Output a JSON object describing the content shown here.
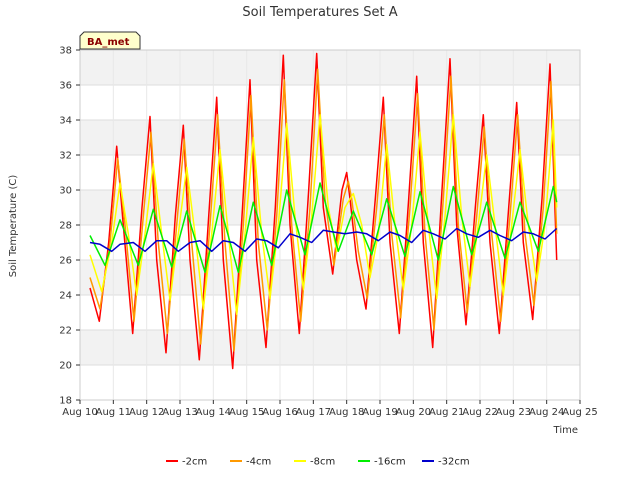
{
  "chart_data": {
    "type": "line",
    "title": "Soil Temperatures Set A",
    "xlabel": "Time",
    "ylabel": "Soil Temperature (C)",
    "badge": "BA_met",
    "xlim": [
      10,
      25
    ],
    "ylim": [
      18,
      38
    ],
    "x_ticks": [
      10,
      11,
      12,
      13,
      14,
      15,
      16,
      17,
      18,
      19,
      20,
      21,
      22,
      23,
      24,
      25
    ],
    "x_tick_labels": [
      "Aug 10",
      "Aug 11",
      "Aug 12",
      "Aug 13",
      "Aug 14",
      "Aug 15",
      "Aug 16",
      "Aug 17",
      "Aug 18",
      "Aug 19",
      "Aug 20",
      "Aug 21",
      "Aug 22",
      "Aug 23",
      "Aug 24",
      "Aug 25"
    ],
    "y_ticks": [
      18,
      20,
      22,
      24,
      26,
      28,
      30,
      32,
      34,
      36,
      38
    ],
    "grid": true,
    "legend_position": "bottom",
    "series": [
      {
        "name": "-2cm",
        "color": "#ff0000",
        "x": [
          10.3,
          10.58,
          10.86,
          11.1,
          11.3,
          11.58,
          11.86,
          12.1,
          12.3,
          12.58,
          12.86,
          13.1,
          13.3,
          13.58,
          13.86,
          14.1,
          14.3,
          14.58,
          14.86,
          15.1,
          15.3,
          15.58,
          15.86,
          16.1,
          16.3,
          16.58,
          16.86,
          17.1,
          17.3,
          17.58,
          17.86,
          18.0,
          18.1,
          18.3,
          18.58,
          18.86,
          19.1,
          19.3,
          19.58,
          19.86,
          20.1,
          20.3,
          20.58,
          20.86,
          21.1,
          21.3,
          21.58,
          21.86,
          22.1,
          22.3,
          22.58,
          22.86,
          23.1,
          23.3,
          23.58,
          23.86,
          24.1,
          24.3
        ],
        "y": [
          24.4,
          22.5,
          27.0,
          32.5,
          28.0,
          21.8,
          29.0,
          34.2,
          26.0,
          20.7,
          28.5,
          33.7,
          26.0,
          20.3,
          28.5,
          35.3,
          26.0,
          19.8,
          28.5,
          36.3,
          26.0,
          21.0,
          29.0,
          37.7,
          28.0,
          21.8,
          30.0,
          37.8,
          29.0,
          25.2,
          30.0,
          31.0,
          29.5,
          26.0,
          23.2,
          29.5,
          35.3,
          27.0,
          21.8,
          29.5,
          36.5,
          27.0,
          21.0,
          30.0,
          37.5,
          28.0,
          22.3,
          29.0,
          34.3,
          27.0,
          21.8,
          29.0,
          35.0,
          27.0,
          22.6,
          29.5,
          37.2,
          26.0
        ]
      },
      {
        "name": "-4cm",
        "color": "#ff9900",
        "x": [
          10.3,
          10.6,
          10.9,
          11.13,
          11.35,
          11.62,
          11.9,
          12.13,
          12.35,
          12.62,
          12.9,
          13.13,
          13.35,
          13.62,
          13.9,
          14.13,
          14.35,
          14.62,
          14.9,
          15.13,
          15.35,
          15.62,
          15.9,
          16.13,
          16.35,
          16.62,
          16.9,
          17.13,
          17.35,
          17.62,
          17.9,
          18.05,
          18.15,
          18.35,
          18.62,
          18.9,
          19.13,
          19.35,
          19.62,
          19.9,
          20.13,
          20.35,
          20.62,
          20.9,
          21.13,
          21.35,
          21.62,
          21.9,
          22.13,
          22.35,
          22.62,
          22.9,
          23.13,
          23.35,
          23.62,
          23.9,
          24.13,
          24.3
        ],
        "y": [
          25.0,
          23.2,
          27.0,
          31.8,
          28.0,
          22.5,
          28.5,
          33.3,
          27.0,
          21.8,
          28.0,
          32.9,
          27.0,
          21.2,
          28.0,
          34.3,
          27.0,
          20.8,
          28.0,
          35.4,
          27.0,
          22.0,
          28.5,
          36.3,
          28.0,
          22.5,
          29.0,
          36.9,
          29.5,
          25.7,
          29.5,
          30.5,
          29.5,
          26.5,
          23.8,
          29.0,
          34.3,
          27.5,
          22.7,
          29.0,
          35.5,
          27.5,
          22.0,
          29.5,
          36.5,
          28.0,
          23.0,
          28.5,
          33.6,
          27.5,
          22.5,
          28.5,
          34.3,
          27.5,
          23.4,
          29.0,
          36.2,
          27.5
        ]
      },
      {
        "name": "-8cm",
        "color": "#ffff00",
        "x": [
          10.3,
          10.65,
          10.95,
          11.2,
          11.45,
          11.7,
          11.95,
          12.2,
          12.45,
          12.7,
          12.95,
          13.2,
          13.45,
          13.7,
          13.95,
          14.2,
          14.45,
          14.7,
          14.95,
          15.2,
          15.45,
          15.7,
          15.95,
          16.2,
          16.45,
          16.7,
          16.95,
          17.2,
          17.45,
          17.7,
          17.95,
          18.2,
          18.45,
          18.7,
          18.95,
          19.2,
          19.45,
          19.7,
          19.95,
          20.2,
          20.45,
          20.7,
          20.95,
          21.2,
          21.45,
          21.7,
          21.95,
          22.2,
          22.45,
          22.7,
          22.95,
          23.2,
          23.45,
          23.7,
          23.95,
          24.2,
          24.3
        ],
        "y": [
          26.3,
          24.2,
          27.0,
          30.4,
          27.5,
          24.0,
          27.5,
          31.5,
          27.5,
          23.7,
          27.5,
          31.3,
          27.5,
          23.2,
          27.5,
          32.3,
          27.5,
          22.9,
          27.5,
          33.0,
          27.5,
          23.8,
          28.0,
          33.8,
          28.5,
          24.3,
          28.5,
          34.3,
          29.0,
          26.5,
          29.0,
          29.8,
          28.0,
          25.0,
          27.5,
          32.6,
          28.0,
          24.3,
          28.0,
          33.3,
          28.0,
          23.8,
          28.5,
          34.3,
          28.5,
          24.5,
          28.0,
          32.0,
          28.0,
          24.0,
          28.0,
          32.3,
          28.0,
          24.8,
          28.0,
          34.0,
          29.0
        ]
      },
      {
        "name": "-16cm",
        "color": "#00ee00",
        "x": [
          10.3,
          10.75,
          11.2,
          11.75,
          12.2,
          12.75,
          13.2,
          13.75,
          14.2,
          14.75,
          15.2,
          15.75,
          16.2,
          16.75,
          17.2,
          17.75,
          18.2,
          18.75,
          19.2,
          19.75,
          20.2,
          20.75,
          21.2,
          21.75,
          22.2,
          22.75,
          23.2,
          23.75,
          24.2,
          24.3
        ],
        "y": [
          27.4,
          25.7,
          28.3,
          25.7,
          28.9,
          25.6,
          28.8,
          25.3,
          29.1,
          25.3,
          29.3,
          25.7,
          30.0,
          26.3,
          30.4,
          26.5,
          28.8,
          26.3,
          29.5,
          26.2,
          29.9,
          26.0,
          30.2,
          26.3,
          29.3,
          26.1,
          29.3,
          26.5,
          30.2,
          29.3
        ]
      },
      {
        "name": "-32cm",
        "color": "#0000cc",
        "x": [
          10.3,
          10.6,
          10.95,
          11.2,
          11.6,
          11.95,
          12.3,
          12.6,
          12.95,
          13.3,
          13.6,
          13.95,
          14.3,
          14.6,
          14.95,
          15.3,
          15.6,
          15.95,
          16.3,
          16.6,
          16.95,
          17.3,
          17.6,
          17.95,
          18.3,
          18.6,
          18.95,
          19.3,
          19.6,
          19.95,
          20.3,
          20.6,
          20.95,
          21.3,
          21.6,
          21.95,
          22.3,
          22.6,
          22.95,
          23.3,
          23.6,
          23.95,
          24.3
        ],
        "y": [
          27.0,
          26.9,
          26.5,
          26.9,
          27.0,
          26.5,
          27.1,
          27.1,
          26.5,
          27.0,
          27.1,
          26.5,
          27.1,
          27.0,
          26.5,
          27.2,
          27.1,
          26.7,
          27.5,
          27.3,
          27.0,
          27.7,
          27.6,
          27.5,
          27.6,
          27.5,
          27.1,
          27.6,
          27.4,
          27.0,
          27.7,
          27.5,
          27.2,
          27.8,
          27.5,
          27.3,
          27.7,
          27.4,
          27.1,
          27.6,
          27.5,
          27.2,
          27.8
        ]
      }
    ]
  }
}
